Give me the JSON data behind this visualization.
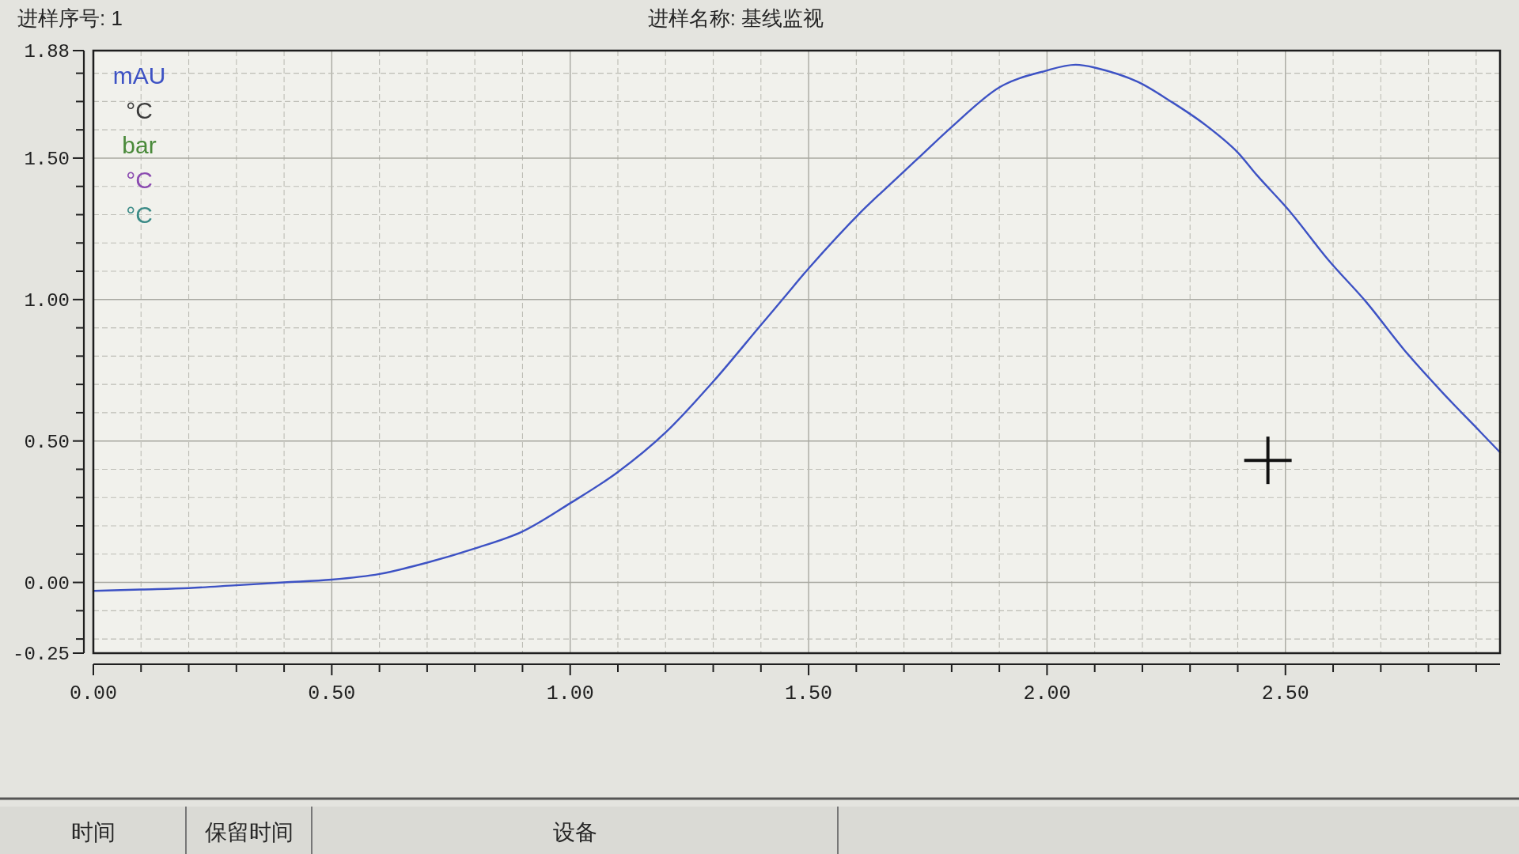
{
  "chart_data": {
    "type": "line",
    "title": "进样名称: 基线监视",
    "annotations": [
      "进样序号: 1",
      "时间",
      "保留时间",
      "设备"
    ],
    "series": [
      {
        "name": "mAU",
        "color": "#3d52c4",
        "x": [
          0.0,
          0.1,
          0.2,
          0.3,
          0.4,
          0.5,
          0.6,
          0.7,
          0.8,
          0.9,
          1.0,
          1.1,
          1.2,
          1.3,
          1.4,
          1.45,
          1.5,
          1.61,
          1.66,
          1.73,
          1.8,
          1.9,
          2.0,
          2.06,
          2.1,
          2.19,
          2.26,
          2.33,
          2.4,
          2.44,
          2.51,
          2.59,
          2.67,
          2.75,
          2.83,
          2.91,
          2.95
        ],
        "values": [
          -0.03,
          -0.025,
          -0.02,
          -0.01,
          0.0,
          0.01,
          0.03,
          0.07,
          0.12,
          0.18,
          0.28,
          0.39,
          0.53,
          0.71,
          0.91,
          1.01,
          1.11,
          1.31,
          1.39,
          1.5,
          1.61,
          1.75,
          1.81,
          1.83,
          1.82,
          1.77,
          1.7,
          1.62,
          1.52,
          1.44,
          1.31,
          1.14,
          0.99,
          0.82,
          0.67,
          0.53,
          0.46
        ]
      },
      {
        "name": "°C",
        "color": "#3a3a3a"
      },
      {
        "name": "bar",
        "color": "#4a8a3a"
      },
      {
        "name": "°C",
        "color": "#8a4ab0"
      },
      {
        "name": "°C",
        "color": "#3a8a86"
      }
    ],
    "xlim": [
      0,
      2.95
    ],
    "ylim": [
      -0.25,
      1.88
    ],
    "xticks": [
      {
        "value": 0,
        "label": "0.00"
      },
      {
        "value": 0.1,
        "label": null
      },
      {
        "value": 0.2,
        "label": null
      },
      {
        "value": 0.3,
        "label": null
      },
      {
        "value": 0.4,
        "label": null
      },
      {
        "value": 0.5,
        "label": "0.50"
      },
      {
        "value": 0.6,
        "label": null
      },
      {
        "value": 0.7,
        "label": null
      },
      {
        "value": 0.8,
        "label": null
      },
      {
        "value": 0.9,
        "label": null
      },
      {
        "value": 1.0,
        "label": "1.00"
      },
      {
        "value": 1.1,
        "label": null
      },
      {
        "value": 1.2,
        "label": null
      },
      {
        "value": 1.3,
        "label": null
      },
      {
        "value": 1.4,
        "label": null
      },
      {
        "value": 1.5,
        "label": "1.50"
      },
      {
        "value": 1.6,
        "label": null
      },
      {
        "value": 1.7,
        "label": null
      },
      {
        "value": 1.8,
        "label": null
      },
      {
        "value": 1.9,
        "label": null
      },
      {
        "value": 2.0,
        "label": "2.00"
      },
      {
        "value": 2.1,
        "label": null
      },
      {
        "value": 2.2,
        "label": null
      },
      {
        "value": 2.3,
        "label": null
      },
      {
        "value": 2.4,
        "label": null
      },
      {
        "value": 2.5,
        "label": "2.50"
      },
      {
        "value": 2.6,
        "label": null
      },
      {
        "value": 2.7,
        "label": null
      },
      {
        "value": 2.8,
        "label": null
      },
      {
        "value": 2.9,
        "label": null
      }
    ],
    "yticks": [
      {
        "value": -0.25,
        "label": "-0.25"
      },
      {
        "value": -0.2,
        "label": null
      },
      {
        "value": -0.1,
        "label": null
      },
      {
        "value": 0,
        "label": "0.00"
      },
      {
        "value": 0.1,
        "label": null
      },
      {
        "value": 0.2,
        "label": null
      },
      {
        "value": 0.3,
        "label": null
      },
      {
        "value": 0.4,
        "label": null
      },
      {
        "value": 0.5,
        "label": "0.50"
      },
      {
        "value": 0.6,
        "label": null
      },
      {
        "value": 0.7,
        "label": null
      },
      {
        "value": 0.8,
        "label": null
      },
      {
        "value": 0.9,
        "label": null
      },
      {
        "value": 1.0,
        "label": "1.00"
      },
      {
        "value": 1.1,
        "label": null
      },
      {
        "value": 1.2,
        "label": null
      },
      {
        "value": 1.3,
        "label": null
      },
      {
        "value": 1.4,
        "label": null
      },
      {
        "value": 1.5,
        "label": "1.50"
      },
      {
        "value": 1.6,
        "label": null
      },
      {
        "value": 1.7,
        "label": null
      },
      {
        "value": 1.8,
        "label": null
      },
      {
        "value": 1.88,
        "label": "1.88"
      }
    ],
    "grid": true,
    "legend": "top left",
    "line_style": "solid"
  }
}
